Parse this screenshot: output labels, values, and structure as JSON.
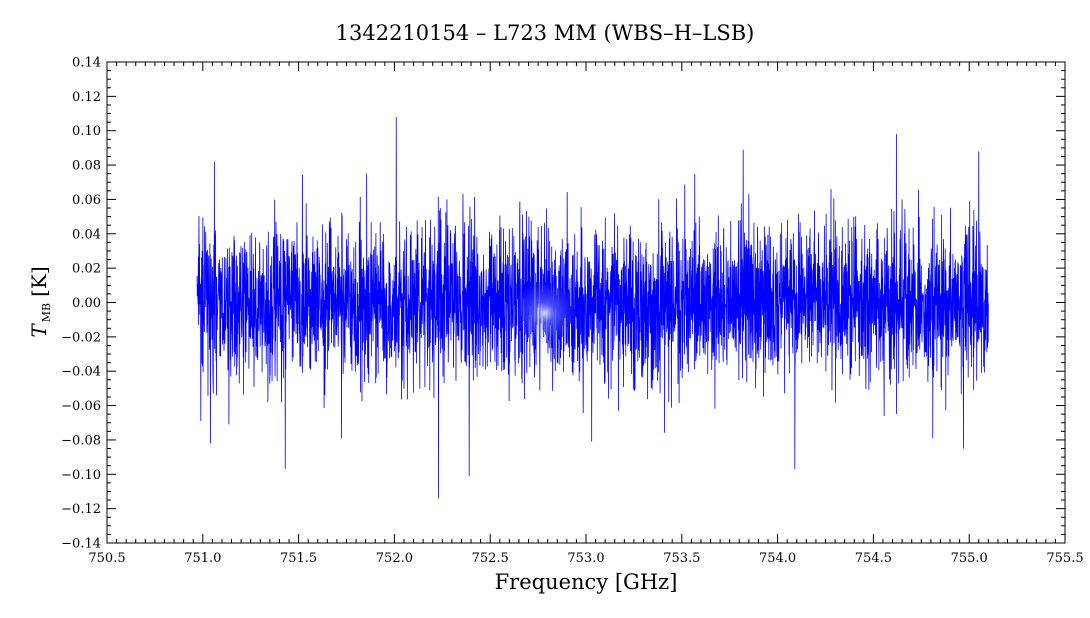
{
  "chart_data": {
    "type": "line",
    "title": "1342210154 – L723 MM (WBS–H–LSB)",
    "xlabel": "Frequency [GHz]",
    "ylabel": {
      "symbol": "T",
      "subscript": "MB",
      "unit": "[K]"
    },
    "xlim": [
      750.5,
      755.5
    ],
    "ylim": [
      -0.14,
      0.14
    ],
    "x_ticks": [
      "750.5",
      "751.0",
      "751.5",
      "752.0",
      "752.5",
      "753.0",
      "753.5",
      "754.0",
      "754.5",
      "755.0",
      "755.5"
    ],
    "y_ticks": [
      "0.14",
      "0.12",
      "0.10",
      "0.08",
      "0.06",
      "0.04",
      "0.02",
      "0.00",
      "−0.02",
      "−0.04",
      "−0.06",
      "−0.08",
      "−0.10",
      "−0.12",
      "−0.14"
    ],
    "grid": false,
    "series": [
      {
        "color": "#0000ff",
        "x_start": 750.97,
        "x_end": 755.1,
        "rms": 0.022,
        "spikes": [
          {
            "x": 752.39,
            "y": 0.124
          },
          {
            "x": 752.01,
            "y": 0.108
          },
          {
            "x": 754.62,
            "y": 0.098
          },
          {
            "x": 753.82,
            "y": 0.089
          },
          {
            "x": 755.05,
            "y": 0.088
          },
          {
            "x": 751.06,
            "y": 0.082
          },
          {
            "x": 752.23,
            "y": -0.114
          },
          {
            "x": 752.39,
            "y": -0.101
          },
          {
            "x": 751.43,
            "y": -0.097
          },
          {
            "x": 754.09,
            "y": -0.097
          },
          {
            "x": 754.97,
            "y": -0.085
          },
          {
            "x": 753.03,
            "y": -0.081
          },
          {
            "x": 751.04,
            "y": -0.082
          },
          {
            "x": 754.81,
            "y": -0.079
          },
          {
            "x": 750.99,
            "y": -0.069
          }
        ]
      }
    ]
  },
  "colors": {
    "series": "#0000ff",
    "axes": "#000000",
    "highlight": "#6a78e0"
  }
}
